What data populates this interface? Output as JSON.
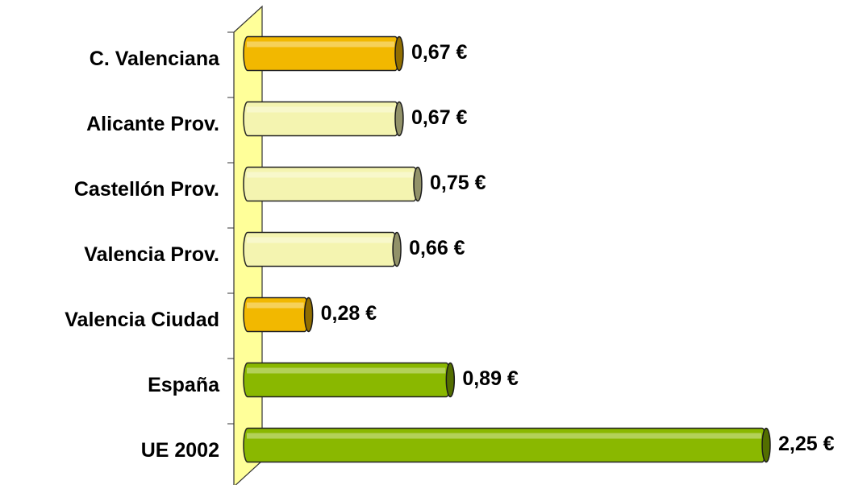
{
  "chart_data": {
    "type": "bar",
    "orientation": "horizontal",
    "categories": [
      "C. Valenciana",
      "Alicante Prov.",
      "Castellón Prov.",
      "Valencia Prov.",
      "Valencia Ciudad",
      "España",
      "UE 2002"
    ],
    "values": [
      0.67,
      0.67,
      0.75,
      0.66,
      0.28,
      0.89,
      2.25
    ],
    "value_labels": [
      "0,67 €",
      "0,67 €",
      "0,75 €",
      "0,66 €",
      "0,28 €",
      "0,89 €",
      "2,25 €"
    ],
    "colors": [
      "#f2b800",
      "#f4f4b0",
      "#f4f4b0",
      "#f4f4b0",
      "#f2b800",
      "#8ab800",
      "#8ab800"
    ]
  }
}
